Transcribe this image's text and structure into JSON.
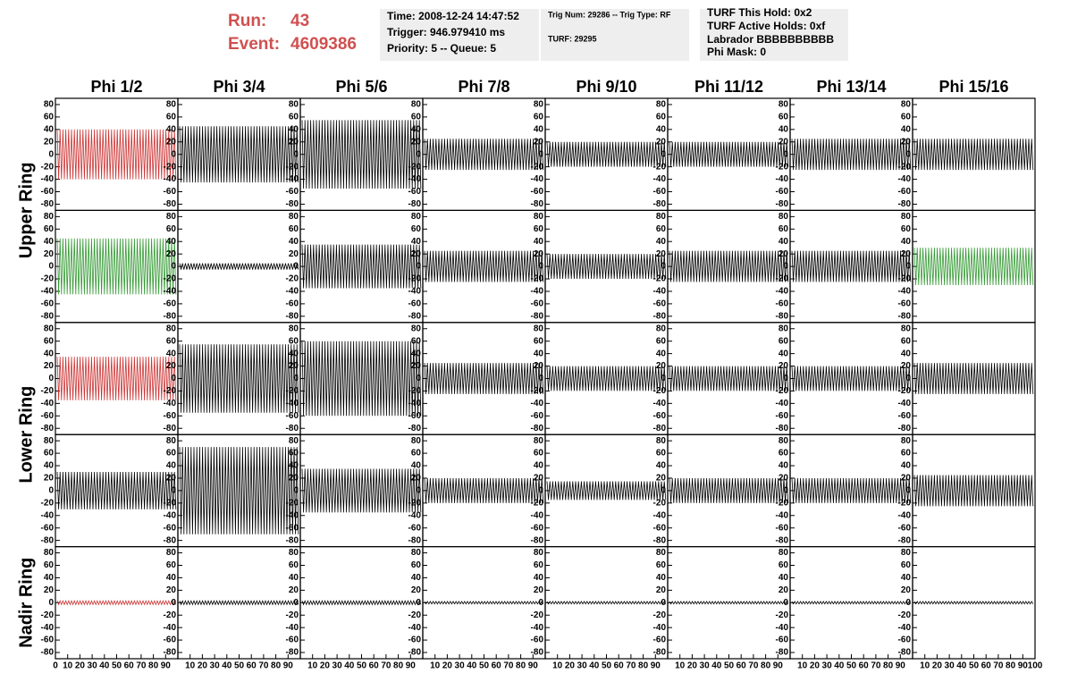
{
  "header": {
    "run_label": "Run:",
    "run": "43",
    "event_label": "Event:",
    "event": "4609386"
  },
  "info": [
    [
      "Time: 2008-12-24 14:47:52",
      "Trigger: 946.979410 ms",
      "Priority: 5 -- Queue: 5"
    ],
    [
      "Trig Num: 29286 -- Trig Type: RF",
      "TURF: 29295"
    ],
    [
      "TURF This Hold: 0x2",
      "TURF Active Holds: 0xf",
      "Labrador BBBBBBBBBB",
      "Phi Mask: 0"
    ]
  ],
  "chart_data": {
    "type": "waveform",
    "columns": [
      "Phi 1/2",
      "Phi 3/4",
      "Phi 5/6",
      "Phi 7/8",
      "Phi 9/10",
      "Phi 11/12",
      "Phi 13/14",
      "Phi 15/16"
    ],
    "ring_labels": [
      "Upper Ring",
      "Lower Ring",
      "Nadir Ring"
    ],
    "ylim": [
      -90,
      90
    ],
    "yticks": [
      -80,
      -60,
      -40,
      -20,
      0,
      20,
      40,
      60,
      80
    ],
    "xlim": [
      0,
      100
    ],
    "xticks": [
      0,
      10,
      20,
      30,
      40,
      50,
      60,
      70,
      80,
      90,
      100
    ],
    "amplitudes": [
      [
        40,
        45,
        55,
        25,
        20,
        20,
        25,
        25
      ],
      [
        45,
        5,
        35,
        25,
        20,
        25,
        25,
        30
      ],
      [
        35,
        55,
        60,
        25,
        20,
        20,
        20,
        25
      ],
      [
        30,
        70,
        35,
        20,
        15,
        20,
        20,
        25
      ],
      [
        3,
        3,
        3,
        2,
        2,
        2,
        2,
        2
      ]
    ],
    "colors": [
      [
        "#cc3333",
        "#000000",
        "#000000",
        "#000000",
        "#000000",
        "#000000",
        "#000000",
        "#000000"
      ],
      [
        "#339933",
        "#000000",
        "#000000",
        "#000000",
        "#000000",
        "#000000",
        "#000000",
        "#339933"
      ],
      [
        "#cc3333",
        "#000000",
        "#000000",
        "#000000",
        "#000000",
        "#000000",
        "#000000",
        "#000000"
      ],
      [
        "#000000",
        "#000000",
        "#000000",
        "#000000",
        "#000000",
        "#000000",
        "#000000",
        "#000000"
      ],
      [
        "#cc3333",
        "#000000",
        "#000000",
        "#000000",
        "#000000",
        "#000000",
        "#000000",
        "#000000"
      ]
    ]
  }
}
